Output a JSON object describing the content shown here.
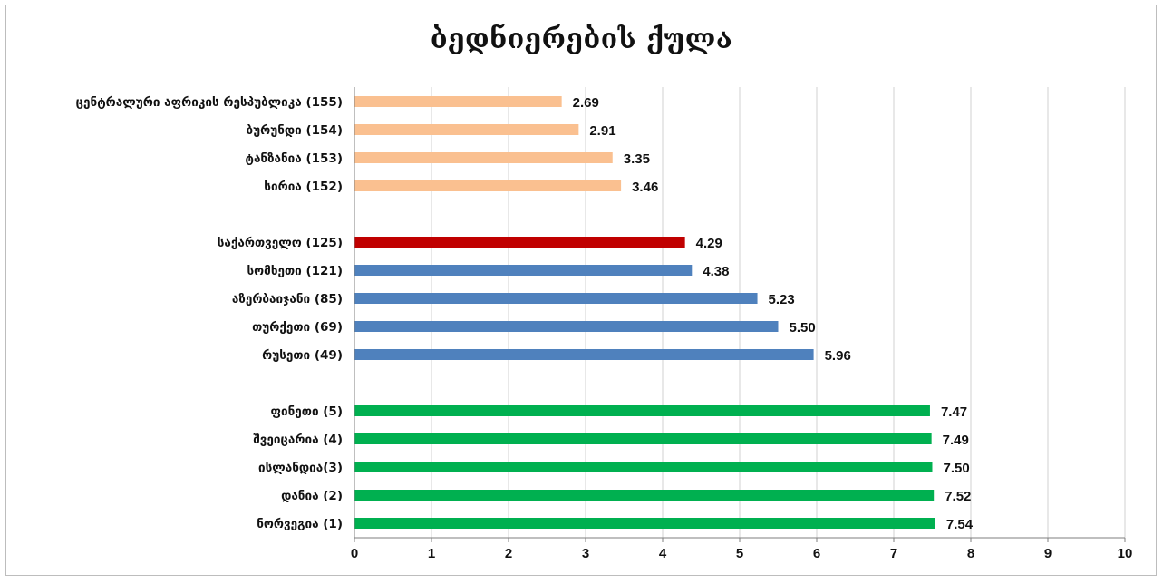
{
  "chart_data": {
    "type": "bar",
    "orientation": "horizontal",
    "title": "ბედნიერების ქულა",
    "xlim": [
      0,
      10
    ],
    "xticks": [
      "0",
      "1",
      "2",
      "3",
      "4",
      "5",
      "6",
      "7",
      "8",
      "9",
      "10"
    ],
    "grid": "vertical",
    "groups": [
      {
        "color": "#fac090",
        "bars": [
          {
            "label": "ცენტრალური აფრიკის რესპუბლიკა (155)",
            "value": 2.69,
            "value_label": "2.69"
          },
          {
            "label": "ბურუნდი (154)",
            "value": 2.91,
            "value_label": "2.91"
          },
          {
            "label": "ტანზანია (153)",
            "value": 3.35,
            "value_label": "3.35"
          },
          {
            "label": "სირია (152)",
            "value": 3.46,
            "value_label": "3.46"
          }
        ]
      },
      {
        "color": "#4f81bd",
        "bars": [
          {
            "label": "საქართველო (125)",
            "value": 4.29,
            "value_label": "4.29",
            "color": "#c00000"
          },
          {
            "label": "სომხეთი (121)",
            "value": 4.38,
            "value_label": "4.38"
          },
          {
            "label": "აზერბაიჯანი (85)",
            "value": 5.23,
            "value_label": "5.23"
          },
          {
            "label": "თურქეთი (69)",
            "value": 5.5,
            "value_label": "5.50"
          },
          {
            "label": "რუსეთი (49)",
            "value": 5.96,
            "value_label": "5.96"
          }
        ]
      },
      {
        "color": "#00b050",
        "bars": [
          {
            "label": "ფინეთი (5)",
            "value": 7.47,
            "value_label": "7.47"
          },
          {
            "label": "შვეიცარია (4)",
            "value": 7.49,
            "value_label": "7.49"
          },
          {
            "label": "ისლანდია(3)",
            "value": 7.5,
            "value_label": "7.50"
          },
          {
            "label": "დანია (2)",
            "value": 7.52,
            "value_label": "7.52"
          },
          {
            "label": "ნორვეგია (1)",
            "value": 7.54,
            "value_label": "7.54"
          }
        ]
      }
    ]
  },
  "colors": {
    "grid": "#d0d0d0",
    "axis": "#7f7f7f",
    "frame_border": "#bdbdbd"
  }
}
